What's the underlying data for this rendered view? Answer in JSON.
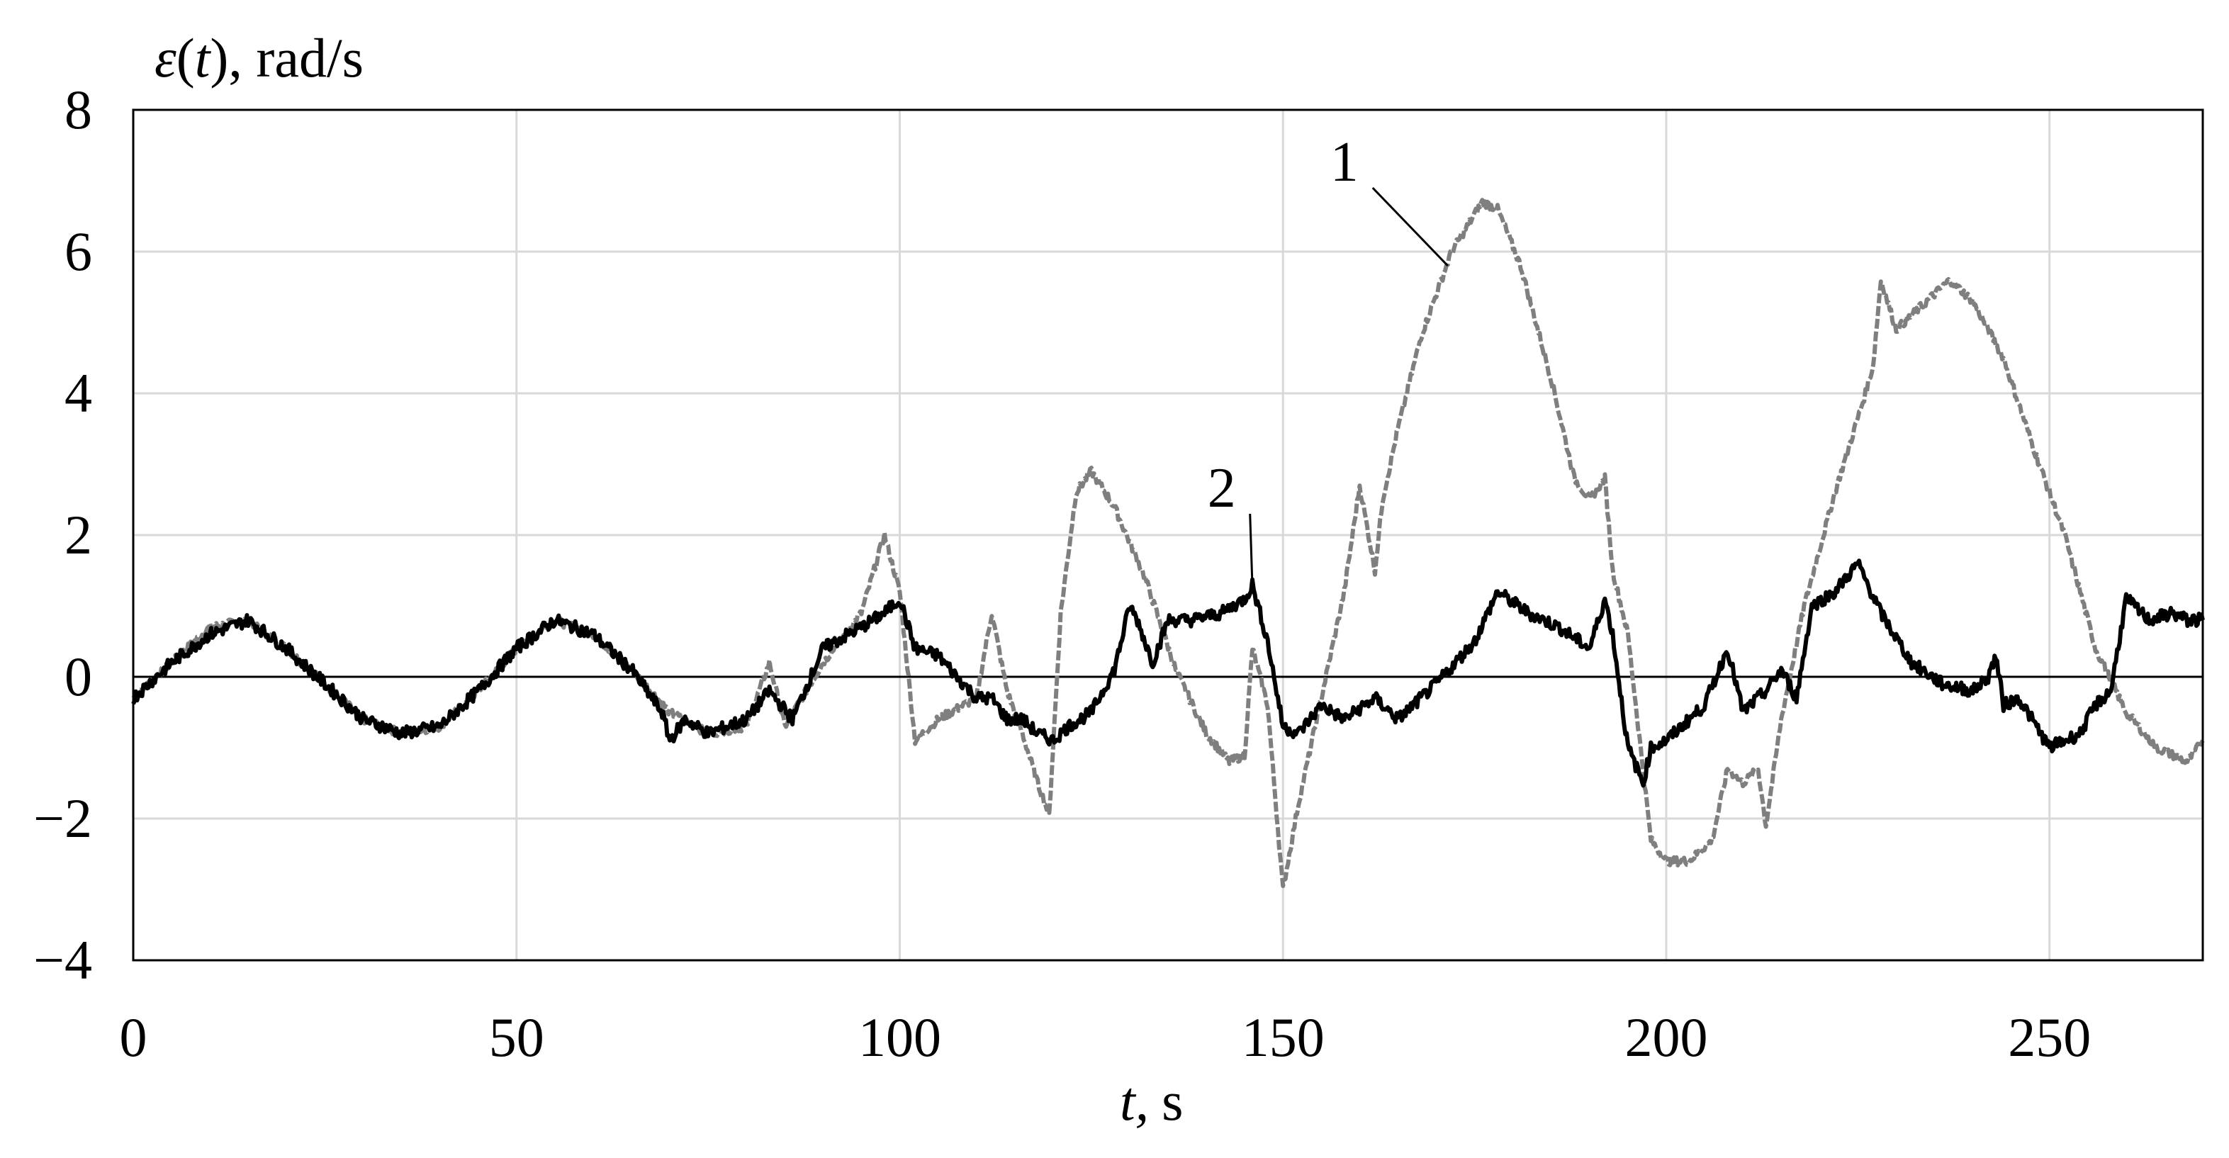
{
  "chart_data": {
    "type": "line",
    "title": "",
    "xlabel_italic": "t,",
    "xlabel_unit": "s",
    "ylabel_prefix": "ε",
    "ylabel_var": "(t)",
    "ylabel_unit": ", rad/s",
    "xlim": [
      0,
      270
    ],
    "ylim": [
      -4,
      8
    ],
    "x_ticks": [
      "0",
      "50",
      "100",
      "150",
      "200",
      "250"
    ],
    "y_ticks": [
      "8",
      "6",
      "4",
      "2",
      "0",
      "−2",
      "−4"
    ],
    "x_tick_values": [
      0,
      50,
      100,
      150,
      200,
      250
    ],
    "y_tick_values": [
      8,
      6,
      4,
      2,
      0,
      -2,
      -4
    ],
    "grid": true,
    "legend": "none",
    "series": [
      {
        "label": "1",
        "color": "#7f7f7f",
        "style": "dashed",
        "x": [
          0,
          5,
          10,
          15,
          20,
          25,
          30,
          35,
          40,
          45,
          50,
          55,
          60,
          65,
          70,
          75,
          80,
          83,
          85,
          90,
          95,
          98,
          100,
          102,
          105,
          110,
          112,
          114,
          116,
          118,
          119.5,
          121,
          123,
          125,
          128,
          132,
          136,
          140,
          143,
          145,
          146,
          148,
          150,
          152,
          155,
          158,
          160,
          162,
          163,
          165,
          168,
          172,
          176,
          178,
          181,
          185,
          188,
          190,
          192,
          193,
          195,
          198,
          200,
          203,
          206,
          208,
          210,
          212,
          213,
          215,
          218,
          222,
          226,
          227,
          228,
          230,
          234,
          237,
          240,
          244,
          248,
          252,
          256,
          260,
          264,
          268,
          270
        ],
        "y": [
          -0.3,
          0.2,
          0.7,
          0.8,
          0.4,
          -0.1,
          -0.6,
          -0.8,
          -0.7,
          -0.2,
          0.4,
          0.8,
          0.6,
          0.1,
          -0.5,
          -0.8,
          -0.7,
          0.2,
          -0.7,
          0.2,
          0.9,
          2.0,
          1.2,
          -0.9,
          -0.6,
          -0.3,
          0.9,
          -0.2,
          -0.8,
          -1.5,
          -1.95,
          0.9,
          2.6,
          2.9,
          2.4,
          1.4,
          0.1,
          -0.8,
          -1.2,
          -1.1,
          0.4,
          -0.4,
          -3.0,
          -1.8,
          -0.3,
          1.2,
          2.7,
          1.5,
          2.5,
          3.5,
          4.8,
          6.0,
          6.7,
          6.6,
          5.8,
          4.2,
          2.8,
          2.5,
          2.8,
          1.5,
          0.6,
          -2.3,
          -2.6,
          -2.6,
          -2.3,
          -1.3,
          -1.5,
          -1.3,
          -2.1,
          -0.6,
          1.0,
          2.6,
          4.0,
          4.4,
          5.6,
          4.9,
          5.3,
          5.6,
          5.3,
          4.5,
          3.2,
          2.0,
          0.4,
          -0.5,
          -1.0,
          -1.2,
          -0.9
        ]
      },
      {
        "label": "2",
        "color": "#000000",
        "style": "solid",
        "x": [
          0,
          5,
          10,
          15,
          20,
          25,
          30,
          35,
          40,
          45,
          50,
          55,
          60,
          65,
          69,
          70,
          72,
          75,
          80,
          83,
          86,
          90,
          95,
          98,
          100,
          102,
          105,
          110,
          112,
          114,
          116,
          118,
          120,
          122,
          125,
          128,
          130,
          131,
          133,
          135,
          138,
          142,
          145,
          146,
          148,
          150,
          152,
          155,
          158,
          162,
          165,
          170,
          175,
          178,
          182,
          186,
          190,
          192,
          193,
          195,
          197,
          198,
          200,
          203,
          205,
          208,
          210,
          213,
          215,
          217,
          219,
          222,
          225,
          228,
          232,
          236,
          240,
          242,
          243,
          244,
          246,
          250,
          254,
          256,
          258,
          260,
          263,
          266,
          268,
          270
        ],
        "y": [
          -0.3,
          0.2,
          0.6,
          0.8,
          0.4,
          -0.1,
          -0.6,
          -0.8,
          -0.7,
          -0.2,
          0.4,
          0.8,
          0.6,
          0.1,
          -0.5,
          -0.9,
          -0.6,
          -0.8,
          -0.6,
          -0.2,
          -0.6,
          0.4,
          0.7,
          0.9,
          1.1,
          0.4,
          0.3,
          -0.3,
          -0.3,
          -0.6,
          -0.6,
          -0.8,
          -0.9,
          -0.7,
          -0.5,
          0.1,
          1.0,
          0.8,
          0.2,
          0.8,
          0.8,
          0.9,
          1.1,
          1.3,
          0.5,
          -0.7,
          -0.8,
          -0.4,
          -0.6,
          -0.3,
          -0.6,
          -0.1,
          0.5,
          1.2,
          0.9,
          0.7,
          0.4,
          1.1,
          0.6,
          -1.0,
          -1.5,
          -1.0,
          -0.9,
          -0.6,
          -0.4,
          0.4,
          -0.5,
          -0.2,
          0.1,
          -0.3,
          1.0,
          1.2,
          1.6,
          0.9,
          0.2,
          -0.1,
          -0.2,
          0.0,
          0.3,
          -0.4,
          -0.3,
          -1.0,
          -0.8,
          -0.4,
          -0.2,
          1.1,
          0.8,
          0.9,
          0.8,
          0.8
        ]
      }
    ],
    "annotations": [
      {
        "text": "1",
        "series": 0,
        "at_x": 171.5,
        "at_y": 5.8,
        "label_x": 158,
        "label_y": 7.0
      },
      {
        "text": "2",
        "series": 1,
        "at_x": 146,
        "at_y": 1.3,
        "label_x": 142,
        "label_y": 2.4
      }
    ]
  }
}
